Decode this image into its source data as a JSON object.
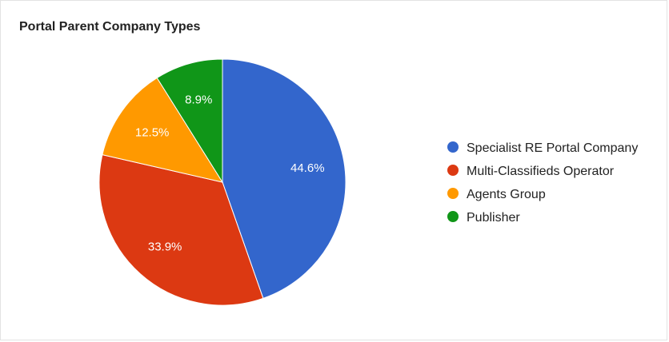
{
  "chart_data": {
    "type": "pie",
    "title": "Portal Parent Company Types",
    "slices": [
      {
        "label": "Specialist RE Portal Company",
        "value": 44.6,
        "display": "44.6%",
        "color": "#3366cc"
      },
      {
        "label": "Multi-Classifieds Operator",
        "value": 33.9,
        "display": "33.9%",
        "color": "#dc3912"
      },
      {
        "label": "Agents Group",
        "value": 12.5,
        "display": "12.5%",
        "color": "#ff9900"
      },
      {
        "label": "Publisher",
        "value": 8.9,
        "display": "8.9%",
        "color": "#109618"
      }
    ],
    "legend": "right"
  }
}
